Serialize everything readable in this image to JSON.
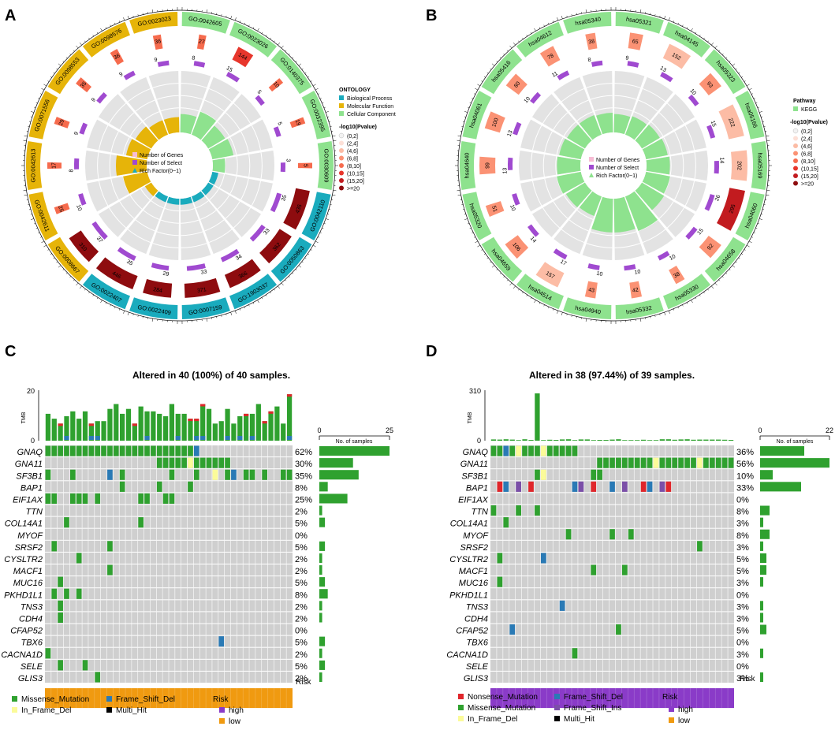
{
  "panels": {
    "A": "A",
    "B": "B",
    "C": "C",
    "D": "D"
  },
  "colors": {
    "bp": "#1aabbd",
    "mf": "#e6b409",
    "cc": "#8ee28e",
    "grey": "#e3e3e3",
    "missense": "#2fa12f",
    "frameshift_del": "#2a7ab5",
    "in_frame_del": "#fbfb99",
    "multi_hit": "#000000",
    "nonsense": "#e0262b",
    "frameshift_ins": "#7b4fa8",
    "high": "#8a3bc8",
    "low": "#f09a10",
    "kegg": "#8ee28e",
    "sample_grey": "#cfcfcf"
  },
  "circos_legend": {
    "number_of_genes": "Number of Genes",
    "number_of_select": "Number of Select",
    "rich_factor": "Rich Factor(0~1)"
  },
  "go": {
    "ontology_title": "ONTOLOGY",
    "ontology_items": [
      "Biological Process",
      "Molecular Function",
      "Cellular Component"
    ],
    "pvalue_title": "-log10(Pvalue)",
    "pvalue_bins": [
      "(0,2]",
      "(2,4]",
      "(4,6]",
      "(6,8]",
      "(8,10]",
      "(10,15]",
      "(15,20]",
      ">=20"
    ],
    "terms": [
      {
        "id": "GO:0042605",
        "cat": "cc",
        "genes": 27,
        "select": 8,
        "rich": 0.3
      },
      {
        "id": "GO:0023026",
        "cat": "cc",
        "genes": 144,
        "select": 15,
        "rich": 0.4
      },
      {
        "id": "GO:0140375",
        "cat": "cc",
        "genes": 10,
        "select": 5,
        "rich": 0.32
      },
      {
        "id": "GO:0032395",
        "cat": "cc",
        "genes": 19,
        "select": 5,
        "rich": 0.35
      },
      {
        "id": "GO:0030609",
        "cat": "cc",
        "genes": 5,
        "select": 3,
        "rich": 0.2
      },
      {
        "id": "GO:0042110",
        "cat": "bp",
        "genes": 435,
        "select": 35,
        "rich": 0.1
      },
      {
        "id": "GO:0050863",
        "cat": "bp",
        "genes": 362,
        "select": 33,
        "rich": 0.1
      },
      {
        "id": "GO:1903037",
        "cat": "bp",
        "genes": 366,
        "select": 34,
        "rich": 0.1
      },
      {
        "id": "GO:0007159",
        "cat": "bp",
        "genes": 371,
        "select": 33,
        "rich": 0.1
      },
      {
        "id": "GO:0022409",
        "cat": "bp",
        "genes": 284,
        "select": 29,
        "rich": 0.1
      },
      {
        "id": "GO:0022407",
        "cat": "bp",
        "genes": 446,
        "select": 35,
        "rich": 0.1
      },
      {
        "id": "GO:0008667",
        "cat": "mf",
        "genes": 310,
        "select": 37,
        "rich": 0.12
      },
      {
        "id": "GO:0042611",
        "cat": "mf",
        "genes": 25,
        "select": 10,
        "rich": 0.4
      },
      {
        "id": "GO:0042613",
        "cat": "mf",
        "genes": 17,
        "select": 8,
        "rich": 0.5
      },
      {
        "id": "GO:0071556",
        "cat": "mf",
        "genes": 29,
        "select": 9,
        "rich": 0.35
      },
      {
        "id": "GO:0098553",
        "cat": "mf",
        "genes": 35,
        "select": 9,
        "rich": 0.3
      },
      {
        "id": "GO:0098576",
        "cat": "mf",
        "genes": 36,
        "select": 9,
        "rich": 0.25
      },
      {
        "id": "GO:0023023",
        "cat": "mf",
        "genes": 36,
        "select": 9,
        "rich": 0.25
      }
    ]
  },
  "kegg": {
    "pathway_title": "Pathway",
    "pathway_items": [
      "KEGG"
    ],
    "pvalue_title": "-log10(Pvalue)",
    "pvalue_bins": [
      "(0,2]",
      "(2,4]",
      "(4,6]",
      "(6,8]",
      "(8,10]",
      "(10,15]",
      "(15,20]",
      ">=20"
    ],
    "terms": [
      {
        "id": "hsa05321",
        "genes": 65,
        "select": 9,
        "rich": 0.3
      },
      {
        "id": "hsa04145",
        "genes": 152,
        "select": 13,
        "rich": 0.32
      },
      {
        "id": "hsa05323",
        "genes": 93,
        "select": 10,
        "rich": 0.34
      },
      {
        "id": "hsa05166",
        "genes": 222,
        "select": 15,
        "rich": 0.36
      },
      {
        "id": "hsa05169",
        "genes": 202,
        "select": 14,
        "rich": 0.38
      },
      {
        "id": "hsa04060",
        "genes": 295,
        "select": 26,
        "rich": 0.4
      },
      {
        "id": "hsa04658",
        "genes": 92,
        "select": 15,
        "rich": 0.42
      },
      {
        "id": "hsa05330",
        "genes": 38,
        "select": 10,
        "rich": 0.6
      },
      {
        "id": "hsa05332",
        "genes": 42,
        "select": 10,
        "rich": 0.55
      },
      {
        "id": "hsa04940",
        "genes": 43,
        "select": 10,
        "rich": 0.55
      },
      {
        "id": "hsa04514",
        "genes": 157,
        "select": 17,
        "rich": 0.34
      },
      {
        "id": "hsa04659",
        "genes": 106,
        "select": 14,
        "rich": 0.36
      },
      {
        "id": "hsa05320",
        "genes": 51,
        "select": 10,
        "rich": 0.4
      },
      {
        "id": "hsa04640",
        "genes": 99,
        "select": 13,
        "rich": 0.38
      },
      {
        "id": "hsa04061",
        "genes": 100,
        "select": 13,
        "rich": 0.36
      },
      {
        "id": "hsa05416",
        "genes": 80,
        "select": 10,
        "rich": 0.34
      },
      {
        "id": "hsa04612",
        "genes": 78,
        "select": 11,
        "rich": 0.34
      },
      {
        "id": "hsa05340",
        "genes": 38,
        "select": 8,
        "rich": 0.32
      }
    ]
  },
  "oncoC": {
    "title": "Altered in 40 (100%) of 40 samples.",
    "tmb_label": "TMB",
    "tmb_max": "20",
    "tmb_zero": "0",
    "ns_label": "No. of samples",
    "ns_min": "0",
    "ns_max": "25",
    "ns_scale": 25,
    "n_samples": 40,
    "risk_label": "Risk",
    "genes": [
      "GNAQ",
      "GNA11",
      "SF3B1",
      "BAP1",
      "EIF1AX",
      "TTN",
      "COL14A1",
      "MYOF",
      "SRSF2",
      "CYSLTR2",
      "MACF1",
      "MUC16",
      "PKHD1L1",
      "TNS3",
      "CDH4",
      "CFAP52",
      "TBX6",
      "CACNA1D",
      "SELE",
      "GLIS3"
    ],
    "percents": [
      "62%",
      "30%",
      "35%",
      "8%",
      "25%",
      "2%",
      "5%",
      "0%",
      "5%",
      "2%",
      "2%",
      "5%",
      "8%",
      "2%",
      "2%",
      "0%",
      "5%",
      "2%",
      "5%",
      "2%"
    ],
    "counts": [
      25,
      12,
      14,
      3,
      10,
      1,
      2,
      0,
      2,
      1,
      1,
      2,
      3,
      1,
      1,
      0,
      2,
      1,
      2,
      1
    ],
    "legend_muts": [
      "Missense_Mutation",
      "Frame_Shift_Del",
      "In_Frame_Del",
      "Multi_Hit"
    ],
    "legend_risk_title": "Risk",
    "legend_risk": [
      "high",
      "low"
    ]
  },
  "oncoD": {
    "title": "Altered in 38 (97.44%) of 39 samples.",
    "tmb_label": "TMB",
    "tmb_max": "310",
    "tmb_zero": "0",
    "ns_label": "No. of samples",
    "ns_min": "0",
    "ns_max": "22",
    "ns_scale": 22,
    "n_samples": 39,
    "risk_label": "Risk",
    "genes": [
      "GNAQ",
      "GNA11",
      "SF3B1",
      "BAP1",
      "EIF1AX",
      "TTN",
      "COL14A1",
      "MYOF",
      "SRSF2",
      "CYSLTR2",
      "MACF1",
      "MUC16",
      "PKHD1L1",
      "TNS3",
      "CDH4",
      "CFAP52",
      "TBX6",
      "CACNA1D",
      "SELE",
      "GLIS3"
    ],
    "percents": [
      "36%",
      "56%",
      "10%",
      "33%",
      "0%",
      "8%",
      "3%",
      "8%",
      "3%",
      "5%",
      "5%",
      "3%",
      "0%",
      "3%",
      "3%",
      "5%",
      "0%",
      "3%",
      "0%",
      "3%"
    ],
    "counts": [
      14,
      22,
      4,
      13,
      0,
      3,
      1,
      3,
      1,
      2,
      2,
      1,
      0,
      1,
      1,
      2,
      0,
      1,
      0,
      1
    ],
    "legend_muts": [
      "Nonsense_Mutation",
      "Frame_Shift_Del",
      "Missense_Mutation",
      "Frame_Shift_Ins",
      "In_Frame_Del",
      "Multi_Hit"
    ],
    "legend_risk_title": "Risk",
    "legend_risk": [
      "high",
      "low"
    ]
  }
}
